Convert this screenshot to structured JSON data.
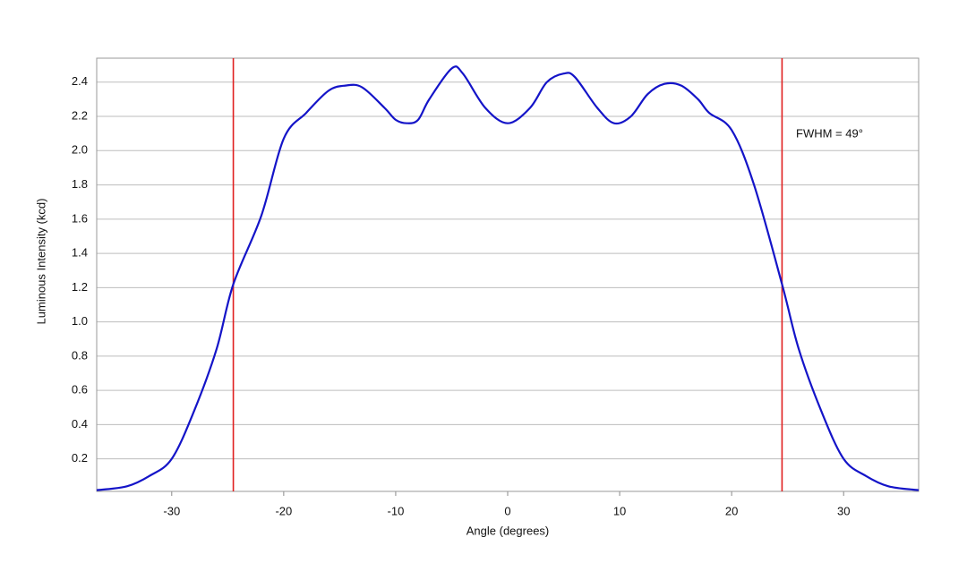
{
  "chart_data": {
    "type": "line",
    "x_label": "Angle (degrees)",
    "y_label": "Luminous Intensity (kcd)",
    "annotation": "FWHM = 49°",
    "xlim": [
      -36.7,
      36.7
    ],
    "ylim": [
      0.01,
      2.54
    ],
    "xticks": [
      -30,
      -20,
      -10,
      0,
      10,
      20,
      30
    ],
    "yticks": [
      0.2,
      0.4,
      0.6,
      0.8,
      {
        "value": 1,
        "label": "1.0"
      },
      1.2,
      1.4,
      1.6,
      1.8,
      {
        "value": 2,
        "label": "2.0"
      },
      2.2,
      2.4
    ],
    "grid": true,
    "vlines": {
      "color": "#e02020",
      "x": [
        -24.5,
        24.5
      ]
    },
    "series": [
      {
        "color": "#1414c8",
        "x": [
          -36.7,
          -34,
          -32,
          -30,
          -28,
          -26,
          -24.5,
          -22,
          -20,
          -18,
          -16,
          -14.5,
          -13,
          -11,
          -10,
          -9,
          -8,
          -7,
          -5,
          -4,
          -2,
          0,
          2,
          3.5,
          5,
          6,
          8,
          9.5,
          11,
          12.5,
          14,
          15.5,
          17,
          18,
          20,
          22,
          24.5,
          26,
          28,
          30,
          32,
          34,
          36.7
        ],
        "values": [
          0.017,
          0.04,
          0.1,
          0.2,
          0.48,
          0.84,
          1.22,
          1.62,
          2.07,
          2.22,
          2.35,
          2.38,
          2.37,
          2.25,
          2.18,
          2.16,
          2.18,
          2.3,
          2.48,
          2.45,
          2.25,
          2.16,
          2.25,
          2.4,
          2.45,
          2.43,
          2.25,
          2.16,
          2.2,
          2.33,
          2.39,
          2.38,
          2.3,
          2.22,
          2.12,
          1.8,
          1.22,
          0.84,
          0.48,
          0.2,
          0.1,
          0.04,
          0.017
        ]
      }
    ]
  }
}
